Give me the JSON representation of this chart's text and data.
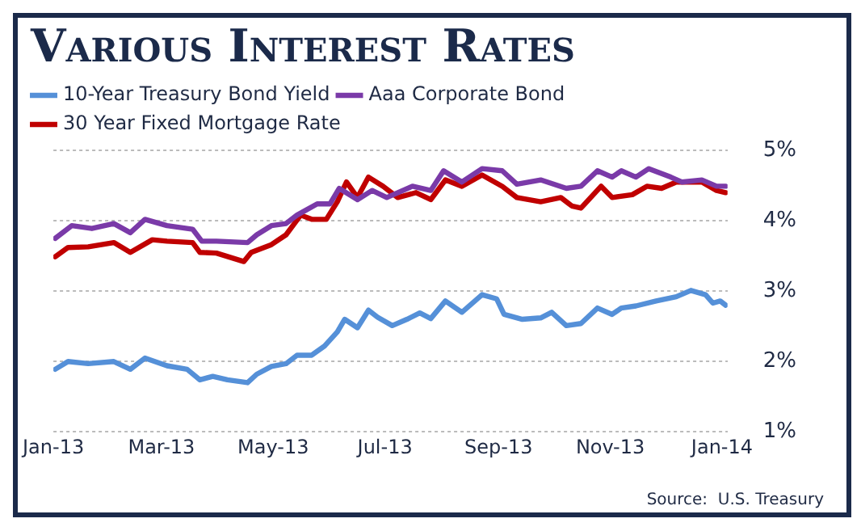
{
  "chart_data": {
    "type": "line",
    "title": "Various Interest Rates",
    "annotations": [
      "Source:  U.S. Treasury"
    ],
    "series": [
      {
        "name": "10-Year Treasury Bond Yield",
        "color": "#5590d8",
        "x": [
          "2013-01-02",
          "2013-01-09",
          "2013-01-20",
          "2013-02-03",
          "2013-02-12",
          "2013-02-20",
          "2013-03-04",
          "2013-03-15",
          "2013-03-22",
          "2013-03-29",
          "2013-04-06",
          "2013-04-17",
          "2013-04-22",
          "2013-04-30",
          "2013-05-08",
          "2013-05-14",
          "2013-05-22",
          "2013-05-29",
          "2013-06-05",
          "2013-06-09",
          "2013-06-16",
          "2013-06-22",
          "2013-06-27",
          "2013-07-05",
          "2013-07-13",
          "2013-07-20",
          "2013-07-26",
          "2013-08-03",
          "2013-08-12",
          "2013-08-23",
          "2013-08-31",
          "2013-09-04",
          "2013-09-14",
          "2013-09-24",
          "2013-09-30",
          "2013-10-08",
          "2013-10-16",
          "2013-10-25",
          "2013-11-02",
          "2013-11-07",
          "2013-11-15",
          "2013-11-26",
          "2013-12-07",
          "2013-12-15",
          "2013-12-23",
          "2013-12-27",
          "2013-12-31",
          "2014-01-03"
        ],
        "values": [
          1.89,
          2.0,
          1.97,
          2.0,
          1.89,
          2.05,
          1.94,
          1.89,
          1.74,
          1.79,
          1.74,
          1.7,
          1.82,
          1.93,
          1.97,
          2.09,
          2.09,
          2.22,
          2.42,
          2.6,
          2.48,
          2.73,
          2.63,
          2.51,
          2.6,
          2.69,
          2.61,
          2.86,
          2.7,
          2.95,
          2.89,
          2.67,
          2.6,
          2.62,
          2.7,
          2.51,
          2.54,
          2.76,
          2.67,
          2.76,
          2.79,
          2.86,
          2.92,
          3.01,
          2.95,
          2.83,
          2.86,
          2.8
        ]
      },
      {
        "name": "Aaa Corporate Bond",
        "color": "#7a3aa8",
        "x": [
          "2013-01-02",
          "2013-01-11",
          "2013-01-22",
          "2013-02-03",
          "2013-02-12",
          "2013-02-20",
          "2013-03-04",
          "2013-03-18",
          "2013-03-23",
          "2013-03-31",
          "2013-04-17",
          "2013-04-22",
          "2013-04-30",
          "2013-05-08",
          "2013-05-14",
          "2013-05-25",
          "2013-06-01",
          "2013-06-06",
          "2013-06-16",
          "2013-06-24",
          "2013-07-02",
          "2013-07-16",
          "2013-07-26",
          "2013-08-02",
          "2013-08-12",
          "2013-08-23",
          "2013-09-03",
          "2013-09-11",
          "2013-09-24",
          "2013-10-08",
          "2013-10-16",
          "2013-10-25",
          "2013-11-02",
          "2013-11-07",
          "2013-11-15",
          "2013-11-22",
          "2013-12-04",
          "2013-12-10",
          "2013-12-21",
          "2013-12-29",
          "2014-01-03"
        ],
        "values": [
          3.75,
          3.93,
          3.89,
          3.96,
          3.83,
          4.02,
          3.93,
          3.88,
          3.71,
          3.71,
          3.69,
          3.8,
          3.93,
          3.96,
          4.08,
          4.24,
          4.24,
          4.46,
          4.3,
          4.43,
          4.33,
          4.49,
          4.43,
          4.71,
          4.55,
          4.74,
          4.71,
          4.52,
          4.58,
          4.46,
          4.49,
          4.71,
          4.62,
          4.71,
          4.62,
          4.74,
          4.62,
          4.55,
          4.58,
          4.49,
          4.49
        ]
      },
      {
        "name": "30 Year Fixed Mortgage Rate",
        "color": "#c00000",
        "x": [
          "2013-01-02",
          "2013-01-09",
          "2013-01-20",
          "2013-02-03",
          "2013-02-12",
          "2013-02-24",
          "2013-03-04",
          "2013-03-18",
          "2013-03-22",
          "2013-03-31",
          "2013-04-15",
          "2013-04-19",
          "2013-04-30",
          "2013-05-08",
          "2013-05-16",
          "2013-05-22",
          "2013-05-30",
          "2013-06-05",
          "2013-06-10",
          "2013-06-16",
          "2013-06-22",
          "2013-06-30",
          "2013-07-08",
          "2013-07-18",
          "2013-07-26",
          "2013-08-03",
          "2013-08-12",
          "2013-08-23",
          "2013-09-03",
          "2013-09-11",
          "2013-09-24",
          "2013-10-05",
          "2013-10-11",
          "2013-10-16",
          "2013-10-27",
          "2013-11-02",
          "2013-11-13",
          "2013-11-21",
          "2013-11-29",
          "2013-12-07",
          "2013-12-21",
          "2013-12-29",
          "2014-01-03"
        ],
        "values": [
          3.49,
          3.62,
          3.63,
          3.69,
          3.55,
          3.73,
          3.71,
          3.69,
          3.55,
          3.54,
          3.42,
          3.55,
          3.66,
          3.8,
          4.08,
          4.02,
          4.02,
          4.27,
          4.55,
          4.33,
          4.62,
          4.49,
          4.33,
          4.4,
          4.3,
          4.58,
          4.49,
          4.65,
          4.49,
          4.33,
          4.27,
          4.33,
          4.21,
          4.18,
          4.49,
          4.33,
          4.37,
          4.49,
          4.46,
          4.55,
          4.55,
          4.43,
          4.4
        ]
      }
    ],
    "xlim": [
      "2013-01-01",
      "2014-01-04"
    ],
    "xticks": [
      {
        "value": "2013-01-01",
        "label": "Jan-13"
      },
      {
        "value": "2013-03-01",
        "label": "Mar-13"
      },
      {
        "value": "2013-05-01",
        "label": "May-13"
      },
      {
        "value": "2013-07-01",
        "label": "Jul-13"
      },
      {
        "value": "2013-09-01",
        "label": "Sep-13"
      },
      {
        "value": "2013-11-01",
        "label": "Nov-13"
      },
      {
        "value": "2014-01-01",
        "label": "Jan-14"
      }
    ],
    "ylim": [
      1,
      5
    ],
    "yticks": [
      {
        "value": 1,
        "label": "1%"
      },
      {
        "value": 2,
        "label": "2%"
      },
      {
        "value": 3,
        "label": "3%"
      },
      {
        "value": 4,
        "label": "4%"
      },
      {
        "value": 5,
        "label": "5%"
      }
    ],
    "grid": "y",
    "legend": "top left",
    "marker": "none",
    "line_style": "solid"
  }
}
